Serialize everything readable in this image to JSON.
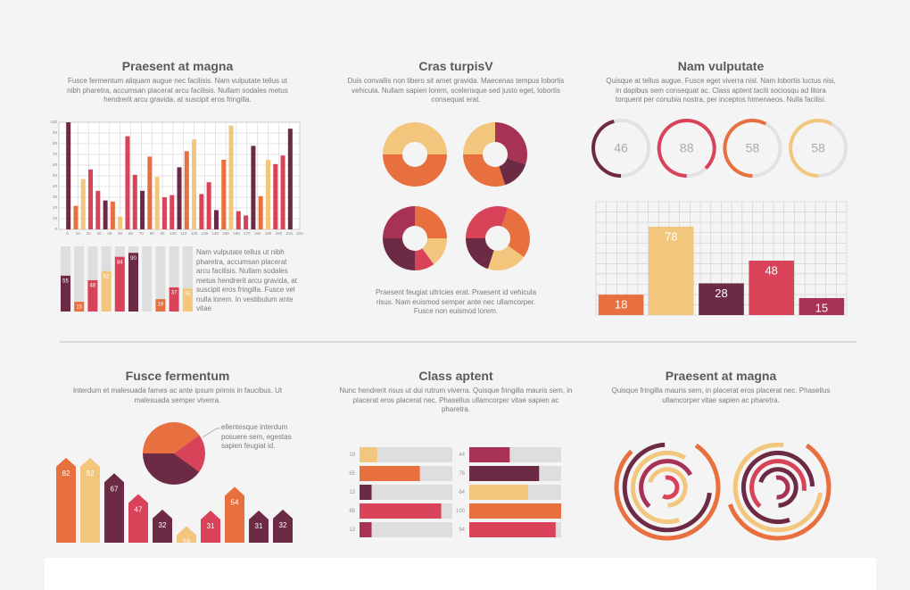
{
  "sections": [
    {
      "title": "Praesent at magna",
      "text": "Fusce fermentum aliquam augue nec facilisis. Nam vulputate tellus ut nibh pharetra, accumsan placerat arcu facilisis. Nullam sodales metus hendrerit arcu gravida, at suscipit eros fringilla.",
      "note": "Nam vulputate tellus ut nibh pharetra, accumsan placerat arcu facilisis. Nullam sodales metus hendrerit arcu gravida, at suscipit eros fringilla. Fusce vel nulla lorem. In vestibulum ante vitae"
    },
    {
      "title": "Cras turpisV",
      "text": "Duis convallis non libero sit amet gravida. Maecenas tempus lobortis vehicula. Nullam sapien lorem, scelerisque sed justo eget, lobortis consequat erat.",
      "note": "Praesent feugiat ultricies erat. Praesent id vehicula risus. Nam euismod semper ante nec ullamcorper. Fusce non euismod lorem."
    },
    {
      "title": "Nam vulputate",
      "text": "Quisque at tellus augue. Fusce eget viverra nisl. Nam lobortis luctus nisi, in dapibus sem consequat ac. Class aptent taciti sociosqu ad litora torquent per conubia nostra, per inceptos himenaeos. Nulla facilisi."
    },
    {
      "title": "Fusce fermentum",
      "text": "Interdum et malesuada fames ac ante ipsum primis in faucibus. Ut malesuada semper viverra."
    },
    {
      "title": "Class aptent",
      "text": "Nunc hendrerit risus ut dui rutrum viverra. Quisque fringilla mauris sem, in placerat eros placerat nec. Phasellus ullamcorper vitae sapien ac pharetra."
    },
    {
      "title": "Praesent at magna",
      "text": "Quisque fringilla mauris sem, in placerat eros placerat nec. Phasellus ullamcorper vitae sapien ac pharetra."
    }
  ],
  "chart_data": [
    {
      "type": "bar",
      "x": [
        1,
        8,
        15,
        22,
        29,
        36,
        43,
        50,
        57,
        64,
        71,
        78,
        85,
        92,
        99,
        106,
        113,
        120,
        127,
        134,
        141,
        148,
        155,
        162,
        169,
        176,
        183,
        190,
        197,
        204,
        211
      ],
      "values": [
        100,
        22,
        47,
        56,
        36,
        27,
        26,
        12,
        87,
        51,
        36,
        68,
        49,
        30,
        32,
        58,
        73,
        84,
        33,
        44,
        18,
        65,
        97,
        17,
        13,
        78,
        31,
        65,
        61,
        69,
        94
      ],
      "color_cycle": [
        "#6d2a45",
        "#e8703f",
        "#f3c67d",
        "#d8435a",
        "#d8435a"
      ],
      "xlim": [
        -8,
        220
      ],
      "xticks": [
        0,
        10,
        20,
        30,
        40,
        50,
        60,
        70,
        80,
        90,
        100,
        110,
        120,
        130,
        140,
        150,
        160,
        170,
        180,
        190,
        200,
        210,
        220
      ],
      "ylim": [
        0,
        100
      ],
      "yticks": [
        0,
        10,
        20,
        30,
        40,
        50,
        60,
        70,
        80,
        90,
        100
      ],
      "grid": true
    },
    {
      "type": "progress",
      "values": [
        55,
        15,
        48,
        62,
        84,
        90,
        null,
        19,
        37,
        35
      ],
      "colors": [
        "#6d2a45",
        "#e8703f",
        "#d8435a",
        "#f3c67d",
        "#d8435a",
        "#6d2a45",
        "#f3c67d",
        "#e8703f",
        "#d8435a",
        "#f3c67d"
      ],
      "ylim": [
        0,
        100
      ]
    },
    {
      "type": "donut",
      "values": [
        50,
        50
      ],
      "colors": [
        "#f3c67d",
        "#e8703f"
      ]
    },
    {
      "type": "donut",
      "values": [
        25,
        30,
        15,
        30
      ],
      "colors": [
        "#f3c67d",
        "#a83253",
        "#6d2a45",
        "#e8703f"
      ]
    },
    {
      "type": "donut",
      "values": [
        25,
        25,
        15,
        10,
        25
      ],
      "colors": [
        "#a83253",
        "#e8703f",
        "#f3c67d",
        "#d8435a",
        "#6d2a45"
      ]
    },
    {
      "type": "donut",
      "values": [
        30,
        30,
        20,
        20
      ],
      "colors": [
        "#d8435a",
        "#e8703f",
        "#f3c67d",
        "#6d2a45"
      ]
    },
    {
      "type": "gauge",
      "values": [
        46,
        88,
        58,
        58
      ],
      "colors": [
        "#6d2a45",
        "#d8435a",
        "#e8703f",
        "#f3c67d"
      ]
    },
    {
      "type": "bar",
      "values": [
        18,
        78,
        28,
        48,
        15
      ],
      "colors": [
        "#e8703f",
        "#f3c67d",
        "#6d2a45",
        "#d8435a",
        "#a83253"
      ],
      "ylim": [
        0,
        100
      ],
      "grid": true,
      "data_labels": true
    },
    {
      "type": "pie",
      "values": [
        40,
        20,
        40
      ],
      "colors": [
        "#e8703f",
        "#d8435a",
        "#6d2a45"
      ],
      "annotation": "ellentesque interdum posuere sem, egestas sapien feugiat id."
    },
    {
      "type": "arrow-bar",
      "values": [
        82,
        82,
        67,
        47,
        32,
        16,
        31,
        54,
        31,
        32
      ],
      "colors": [
        "#e8703f",
        "#f3c67d",
        "#6d2a45",
        "#d8435a",
        "#6d2a45",
        "#f3c67d",
        "#d8435a",
        "#e8703f",
        "#6d2a45",
        "#6d2a45"
      ],
      "ylim": [
        0,
        100
      ]
    },
    {
      "type": "hbar",
      "values": [
        19,
        65,
        13,
        88,
        13
      ],
      "colors": [
        "#f3c67d",
        "#e8703f",
        "#6d2a45",
        "#d8435a",
        "#a83253"
      ],
      "xlim": [
        0,
        100
      ]
    },
    {
      "type": "hbar",
      "values": [
        44,
        76,
        64,
        100,
        94
      ],
      "colors": [
        "#a83253",
        "#6d2a45",
        "#f3c67d",
        "#e8703f",
        "#d8435a"
      ],
      "xlim": [
        0,
        100
      ]
    },
    {
      "type": "radial",
      "values": [
        78,
        72,
        64,
        55,
        70,
        60
      ],
      "colors": [
        "#e8703f",
        "#6d2a45",
        "#f3c67d",
        "#a83253",
        "#f3c67d",
        "#d8435a"
      ]
    },
    {
      "type": "radial",
      "values": [
        60,
        75,
        80,
        65,
        70,
        55
      ],
      "colors": [
        "#e8703f",
        "#f3c67d",
        "#6d2a45",
        "#d8435a",
        "#6d2a45",
        "#a83253"
      ]
    }
  ]
}
